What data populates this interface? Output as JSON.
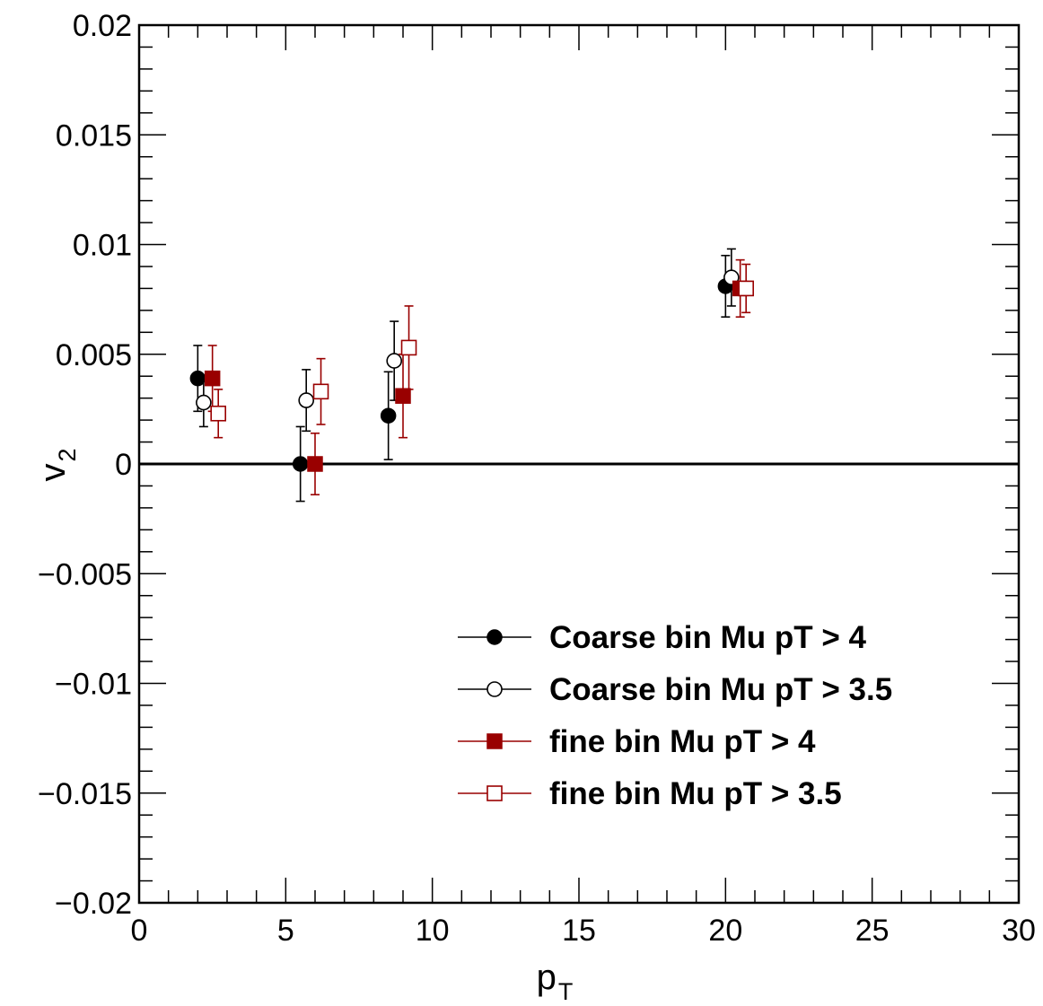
{
  "chart_data": {
    "type": "scatter",
    "xlabel": "p",
    "xlabel_sub": "T",
    "ylabel": "v",
    "ylabel_sub": "2",
    "xlim": [
      0,
      30
    ],
    "ylim": [
      -0.02,
      0.02
    ],
    "x_ticks": [
      0,
      5,
      10,
      15,
      20,
      25,
      30
    ],
    "x_tick_labels": [
      "0",
      "5",
      "10",
      "15",
      "20",
      "25",
      "30"
    ],
    "y_ticks": [
      -0.02,
      -0.015,
      -0.01,
      -0.005,
      0,
      0.005,
      0.01,
      0.015,
      0.02
    ],
    "y_tick_labels": [
      "−0.02",
      "−0.015",
      "−0.01",
      "−0.005",
      "0",
      "0.005",
      "0.01",
      "0.015",
      "0.02"
    ],
    "reference_line_y": 0,
    "grid": false,
    "legend_position": "bottom-right",
    "series": [
      {
        "name": "Coarse bin Mu pT > 4",
        "color": "#000000",
        "marker": "filled-circle",
        "points": [
          {
            "x": 2.0,
            "y": 0.0039,
            "err": 0.0015
          },
          {
            "x": 5.5,
            "y": 0.0,
            "err": 0.0017
          },
          {
            "x": 8.5,
            "y": 0.0022,
            "err": 0.002
          },
          {
            "x": 20.0,
            "y": 0.0081,
            "err": 0.0014
          }
        ]
      },
      {
        "name": "Coarse bin Mu pT > 3.5",
        "color": "#000000",
        "marker": "open-circle",
        "points": [
          {
            "x": 2.2,
            "y": 0.0028,
            "err": 0.0011
          },
          {
            "x": 5.7,
            "y": 0.0029,
            "err": 0.0014
          },
          {
            "x": 8.7,
            "y": 0.0047,
            "err": 0.0018
          },
          {
            "x": 20.2,
            "y": 0.0085,
            "err": 0.0013
          }
        ]
      },
      {
        "name": "fine bin Mu pT > 4",
        "color": "#990000",
        "marker": "filled-square",
        "points": [
          {
            "x": 2.5,
            "y": 0.0039,
            "err": 0.0015
          },
          {
            "x": 6.0,
            "y": 0.0,
            "err": 0.0014
          },
          {
            "x": 9.0,
            "y": 0.0031,
            "err": 0.0019
          },
          {
            "x": 20.5,
            "y": 0.008,
            "err": 0.0013
          }
        ]
      },
      {
        "name": "fine bin Mu pT > 3.5",
        "color": "#990000",
        "marker": "open-square",
        "points": [
          {
            "x": 2.7,
            "y": 0.0023,
            "err": 0.0011
          },
          {
            "x": 6.2,
            "y": 0.0033,
            "err": 0.0015
          },
          {
            "x": 9.2,
            "y": 0.0053,
            "err": 0.0019
          },
          {
            "x": 20.7,
            "y": 0.008,
            "err": 0.0011
          }
        ]
      }
    ]
  }
}
